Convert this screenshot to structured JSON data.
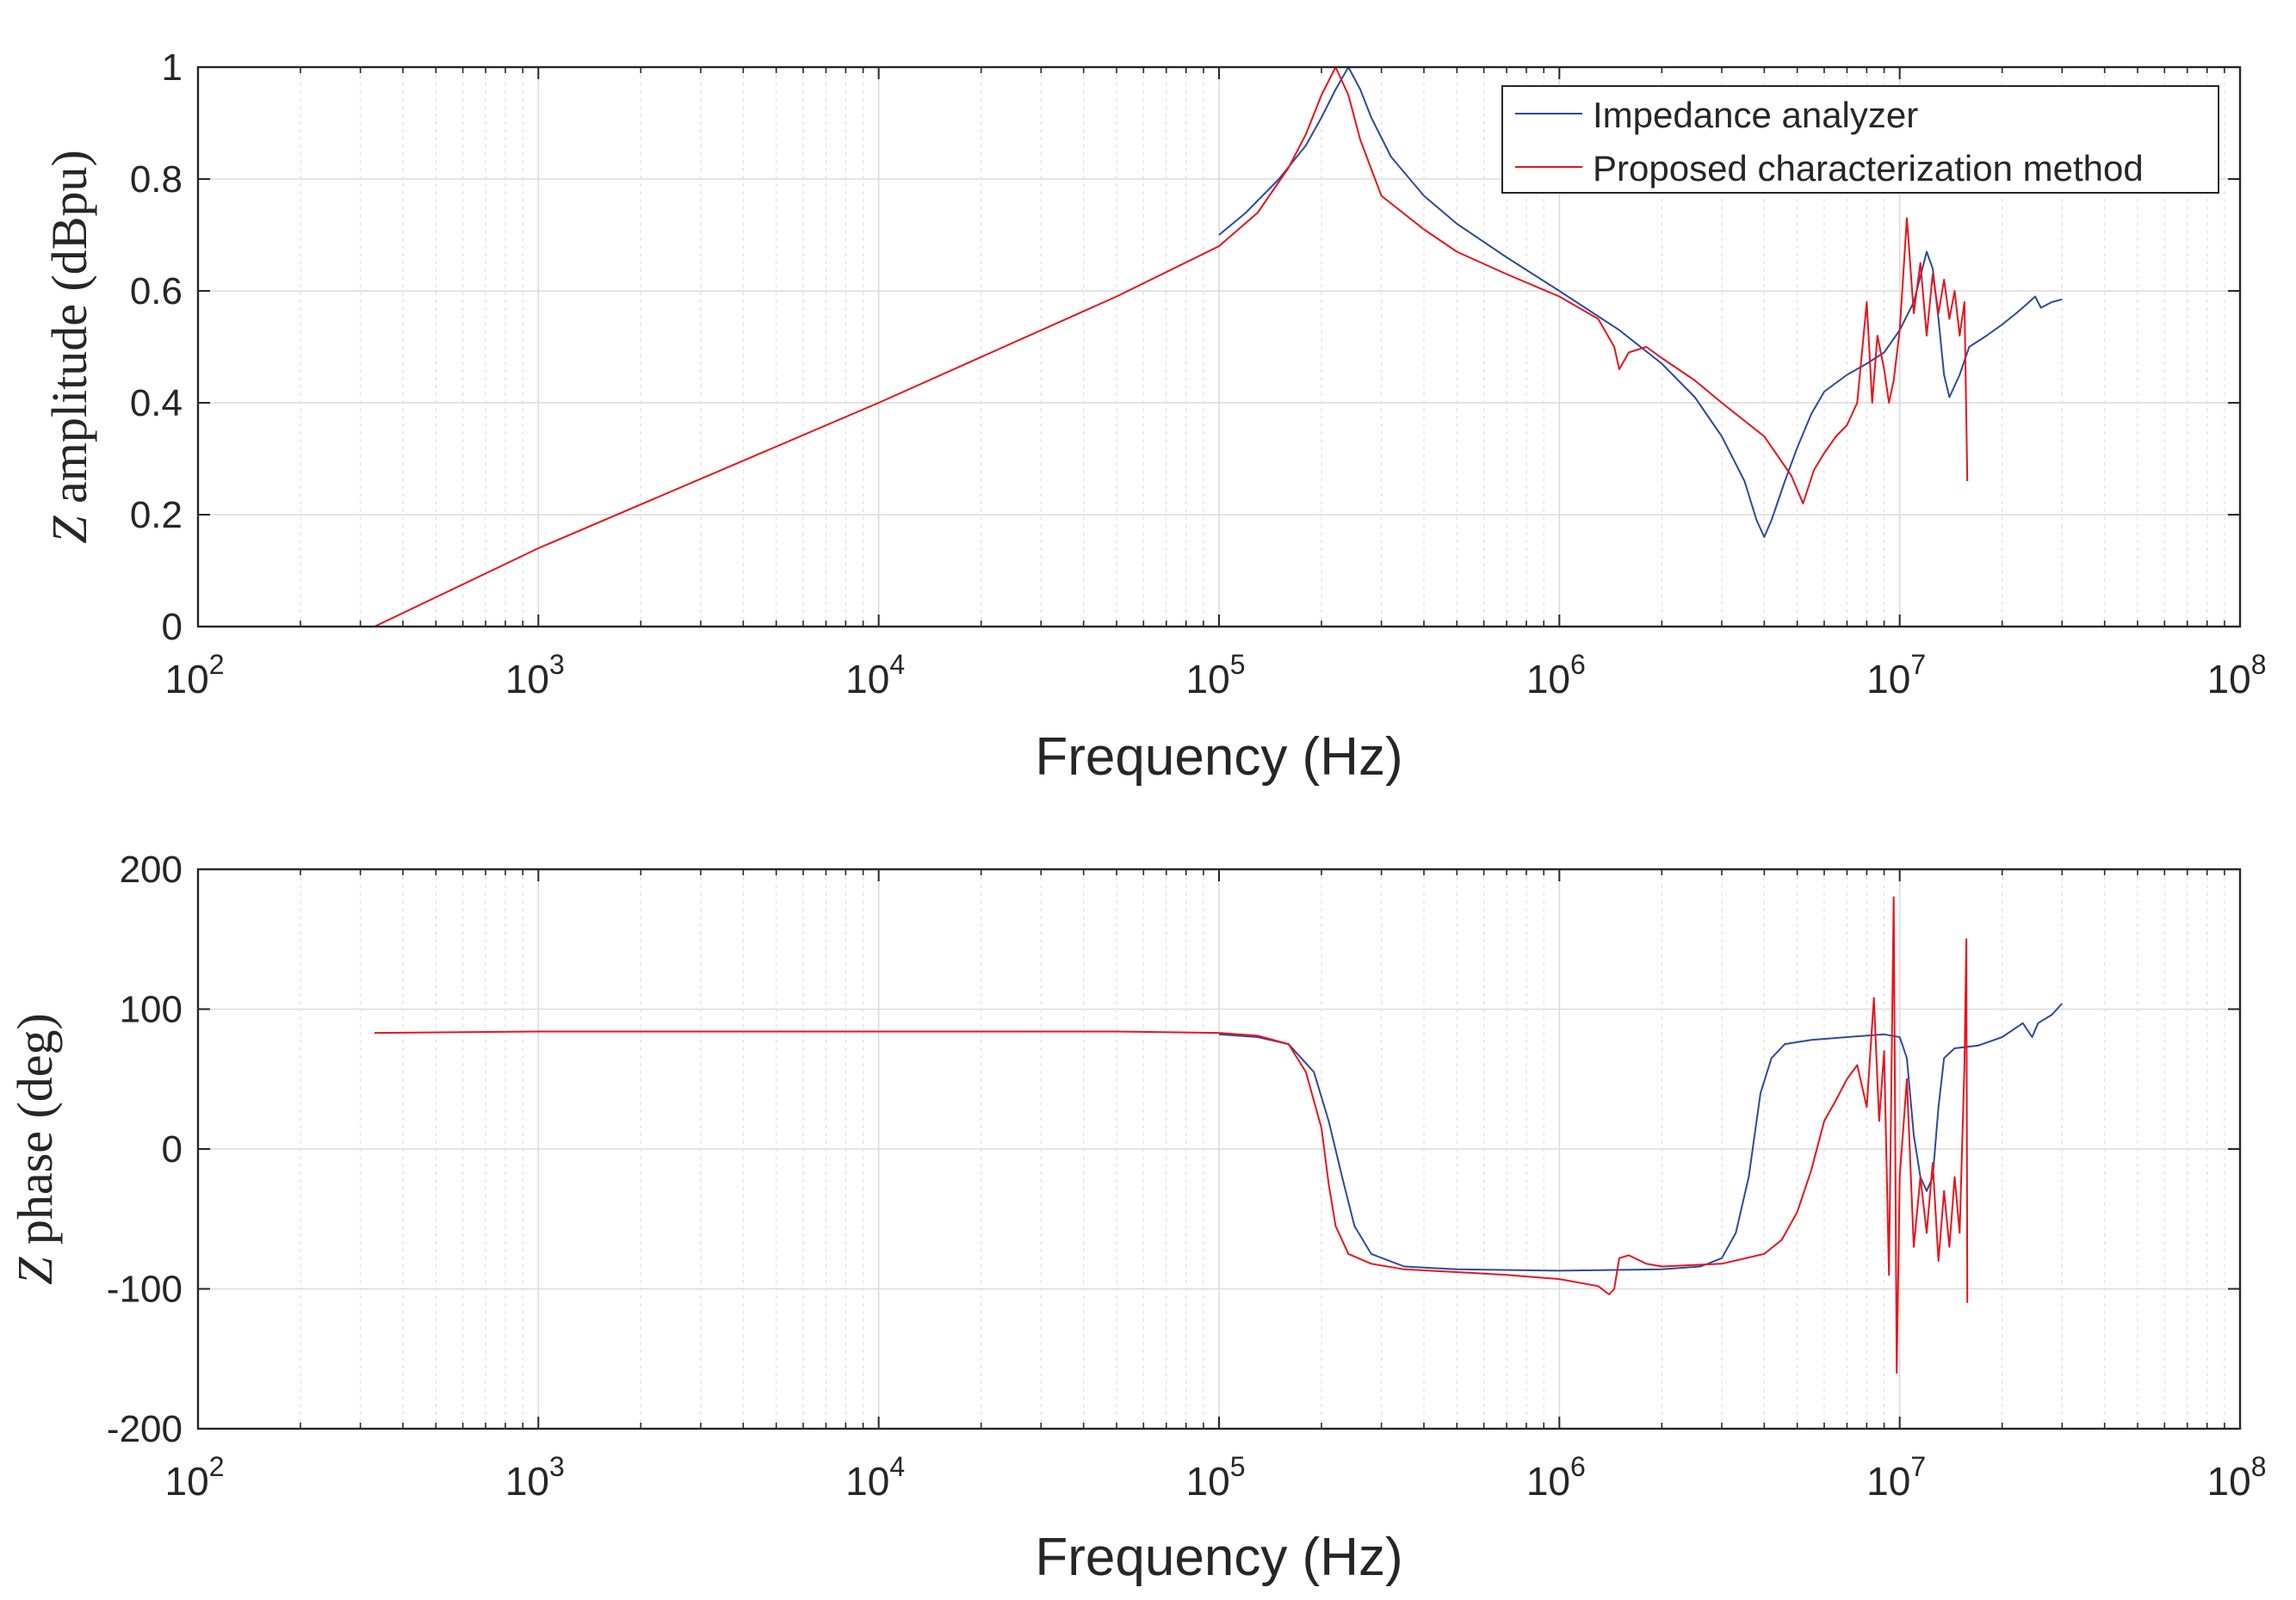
{
  "chart_data": [
    {
      "type": "line",
      "xscale": "log",
      "xlim_exp": [
        2,
        8
      ],
      "ylim": [
        0,
        1
      ],
      "yticks": [
        0,
        0.2,
        0.4,
        0.6,
        0.8,
        1
      ],
      "ytick_labels": [
        "0",
        "0.2",
        "0.4",
        "0.6",
        "0.8",
        "1"
      ],
      "xlabel": "Frequency (Hz)",
      "ylabel_symbol": "Z",
      "ylabel": " amplitude (dBpu)",
      "grid": true,
      "legend_position": "top-right",
      "series": [
        {
          "name": "Impedance analyzer",
          "color": "#2E4A9E",
          "points": [
            [
              100000.0,
              0.7
            ],
            [
              120000.0,
              0.74
            ],
            [
              150000.0,
              0.8
            ],
            [
              180000.0,
              0.86
            ],
            [
              200000.0,
              0.91
            ],
            [
              220000.0,
              0.96
            ],
            [
              240000.0,
              1.0
            ],
            [
              260000.0,
              0.96
            ],
            [
              280000.0,
              0.91
            ],
            [
              320000.0,
              0.84
            ],
            [
              400000.0,
              0.77
            ],
            [
              500000.0,
              0.72
            ],
            [
              700000.0,
              0.66
            ],
            [
              1000000.0,
              0.6
            ],
            [
              1500000.0,
              0.53
            ],
            [
              2000000.0,
              0.47
            ],
            [
              2500000.0,
              0.41
            ],
            [
              3000000.0,
              0.34
            ],
            [
              3500000.0,
              0.26
            ],
            [
              3800000.0,
              0.19
            ],
            [
              4000000.0,
              0.16
            ],
            [
              4200000.0,
              0.19
            ],
            [
              4600000.0,
              0.26
            ],
            [
              5000000.0,
              0.32
            ],
            [
              5500000.0,
              0.38
            ],
            [
              6000000.0,
              0.42
            ],
            [
              7000000.0,
              0.45
            ],
            [
              8000000.0,
              0.47
            ],
            [
              9000000.0,
              0.49
            ],
            [
              10000000.0,
              0.53
            ],
            [
              11000000.0,
              0.58
            ],
            [
              12000000.0,
              0.67
            ],
            [
              12500000.0,
              0.64
            ],
            [
              13000000.0,
              0.55
            ],
            [
              13500000.0,
              0.45
            ],
            [
              14000000.0,
              0.41
            ],
            [
              15000000.0,
              0.45
            ],
            [
              16000000.0,
              0.5
            ],
            [
              18000000.0,
              0.52
            ],
            [
              20000000.0,
              0.54
            ],
            [
              22000000.0,
              0.56
            ],
            [
              24000000.0,
              0.58
            ],
            [
              25000000.0,
              0.59
            ],
            [
              26000000.0,
              0.57
            ],
            [
              28000000.0,
              0.58
            ],
            [
              30000000.0,
              0.585
            ]
          ]
        },
        {
          "name": "Proposed characterization method",
          "color": "#E8141C",
          "points": [
            [
              330,
              0.0
            ],
            [
              1000.0,
              0.14
            ],
            [
              10000.0,
              0.4
            ],
            [
              50000.0,
              0.59
            ],
            [
              100000.0,
              0.68
            ],
            [
              130000.0,
              0.74
            ],
            [
              160000.0,
              0.82
            ],
            [
              180000.0,
              0.88
            ],
            [
              200000.0,
              0.95
            ],
            [
              220000.0,
              1.0
            ],
            [
              240000.0,
              0.95
            ],
            [
              260000.0,
              0.87
            ],
            [
              300000.0,
              0.77
            ],
            [
              400000.0,
              0.71
            ],
            [
              500000.0,
              0.67
            ],
            [
              700000.0,
              0.63
            ],
            [
              1000000.0,
              0.59
            ],
            [
              1300000.0,
              0.55
            ],
            [
              1450000.0,
              0.5
            ],
            [
              1500000.0,
              0.46
            ],
            [
              1600000.0,
              0.49
            ],
            [
              1800000.0,
              0.5
            ],
            [
              2000000.0,
              0.48
            ],
            [
              2500000.0,
              0.44
            ],
            [
              3000000.0,
              0.4
            ],
            [
              4000000.0,
              0.34
            ],
            [
              4800000.0,
              0.27
            ],
            [
              5200000.0,
              0.22
            ],
            [
              5600000.0,
              0.28
            ],
            [
              6000000.0,
              0.31
            ],
            [
              6500000.0,
              0.34
            ],
            [
              7000000.0,
              0.36
            ],
            [
              7500000.0,
              0.4
            ],
            [
              8000000.0,
              0.58
            ],
            [
              8300000.0,
              0.4
            ],
            [
              8600000.0,
              0.52
            ],
            [
              9000000.0,
              0.46
            ],
            [
              9300000.0,
              0.4
            ],
            [
              9600000.0,
              0.44
            ],
            [
              10000000.0,
              0.53
            ],
            [
              10500000.0,
              0.73
            ],
            [
              11000000.0,
              0.56
            ],
            [
              11500000.0,
              0.65
            ],
            [
              12000000.0,
              0.52
            ],
            [
              12500000.0,
              0.63
            ],
            [
              13000000.0,
              0.56
            ],
            [
              13500000.0,
              0.62
            ],
            [
              14000000.0,
              0.55
            ],
            [
              14500000.0,
              0.6
            ],
            [
              15000000.0,
              0.52
            ],
            [
              15500000.0,
              0.58
            ],
            [
              15800000.0,
              0.26
            ]
          ]
        }
      ]
    },
    {
      "type": "line",
      "xscale": "log",
      "xlim_exp": [
        2,
        8
      ],
      "ylim": [
        -200,
        200
      ],
      "yticks": [
        -200,
        -100,
        0,
        100,
        200
      ],
      "ytick_labels": [
        "-200",
        "-100",
        "0",
        "100",
        "200"
      ],
      "xlabel": "Frequency (Hz)",
      "ylabel_symbol": "Z",
      "ylabel": " phase (deg)",
      "grid": true,
      "series": [
        {
          "name": "Impedance analyzer",
          "color": "#2E4A9E",
          "points": [
            [
              100000.0,
              82
            ],
            [
              130000.0,
              80
            ],
            [
              160000.0,
              75
            ],
            [
              190000.0,
              55
            ],
            [
              210000.0,
              20
            ],
            [
              230000.0,
              -20
            ],
            [
              250000.0,
              -55
            ],
            [
              280000.0,
              -75
            ],
            [
              350000.0,
              -84
            ],
            [
              500000.0,
              -86
            ],
            [
              1000000.0,
              -87
            ],
            [
              2000000.0,
              -86
            ],
            [
              2600000.0,
              -84
            ],
            [
              3000000.0,
              -78
            ],
            [
              3300000.0,
              -60
            ],
            [
              3600000.0,
              -20
            ],
            [
              3900000.0,
              40
            ],
            [
              4200000.0,
              65
            ],
            [
              4600000.0,
              75
            ],
            [
              5500000.0,
              78
            ],
            [
              7000000.0,
              80
            ],
            [
              9000000.0,
              82
            ],
            [
              10000000.0,
              80
            ],
            [
              10500000.0,
              65
            ],
            [
              11000000.0,
              10
            ],
            [
              11500000.0,
              -20
            ],
            [
              12000000.0,
              -30
            ],
            [
              12500000.0,
              -20
            ],
            [
              13000000.0,
              30
            ],
            [
              13500000.0,
              65
            ],
            [
              14500000.0,
              72
            ],
            [
              17000000.0,
              74
            ],
            [
              20000000.0,
              80
            ],
            [
              23000000.0,
              90
            ],
            [
              24500000.0,
              80
            ],
            [
              25500000.0,
              90
            ],
            [
              28000000.0,
              96
            ],
            [
              30000000.0,
              104
            ]
          ]
        },
        {
          "name": "Proposed characterization method",
          "color": "#E8141C",
          "points": [
            [
              330,
              83
            ],
            [
              1000.0,
              84
            ],
            [
              10000.0,
              84
            ],
            [
              50000.0,
              84
            ],
            [
              100000.0,
              83
            ],
            [
              130000.0,
              81
            ],
            [
              160000.0,
              75
            ],
            [
              180000.0,
              55
            ],
            [
              200000.0,
              15
            ],
            [
              210000.0,
              -25
            ],
            [
              220000.0,
              -55
            ],
            [
              240000.0,
              -75
            ],
            [
              280000.0,
              -82
            ],
            [
              350000.0,
              -86
            ],
            [
              500000.0,
              -88
            ],
            [
              700000.0,
              -90
            ],
            [
              1000000.0,
              -93
            ],
            [
              1300000.0,
              -98
            ],
            [
              1400000.0,
              -104
            ],
            [
              1450000.0,
              -100
            ],
            [
              1500000.0,
              -78
            ],
            [
              1600000.0,
              -76
            ],
            [
              1800000.0,
              -82
            ],
            [
              2000000.0,
              -84
            ],
            [
              3000000.0,
              -82
            ],
            [
              4000000.0,
              -75
            ],
            [
              4500000.0,
              -65
            ],
            [
              5000000.0,
              -45
            ],
            [
              5500000.0,
              -15
            ],
            [
              6000000.0,
              20
            ],
            [
              6500000.0,
              35
            ],
            [
              7000000.0,
              50
            ],
            [
              7500000.0,
              60
            ],
            [
              8000000.0,
              30
            ],
            [
              8400000.0,
              108
            ],
            [
              8700000.0,
              20
            ],
            [
              9000000.0,
              70
            ],
            [
              9300000.0,
              -90
            ],
            [
              9600000.0,
              180
            ],
            [
              9800000.0,
              -160
            ],
            [
              10000000.0,
              -20
            ],
            [
              10500000.0,
              50
            ],
            [
              11000000.0,
              -70
            ],
            [
              11500000.0,
              -20
            ],
            [
              12000000.0,
              -60
            ],
            [
              12500000.0,
              -10
            ],
            [
              13000000.0,
              -80
            ],
            [
              13500000.0,
              -30
            ],
            [
              14000000.0,
              -70
            ],
            [
              14500000.0,
              -20
            ],
            [
              15000000.0,
              -60
            ],
            [
              15500000.0,
              60
            ],
            [
              15700000.0,
              150
            ],
            [
              15800000.0,
              -110
            ]
          ]
        }
      ]
    }
  ]
}
